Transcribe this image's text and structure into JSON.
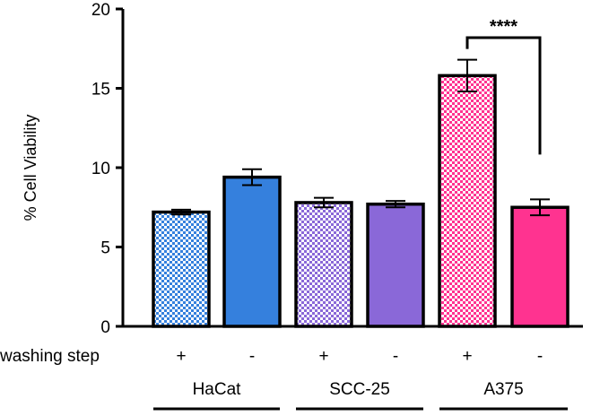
{
  "chart_data": {
    "type": "bar",
    "title": "",
    "ylabel": "% Cell Viability",
    "ylim": [
      0,
      20
    ],
    "yticks": [
      0,
      5,
      10,
      15,
      20
    ],
    "row_label": "washing step",
    "categories": [
      "+",
      "-",
      "+",
      "-",
      "+",
      "-"
    ],
    "groups": [
      {
        "name": "HaCat",
        "color": "#3580dd"
      },
      {
        "name": "SCC-25",
        "color": "#8a68d8"
      },
      {
        "name": "A375",
        "color": "#ff3390"
      }
    ],
    "values": [
      7.2,
      9.4,
      7.8,
      7.7,
      15.8,
      7.5
    ],
    "errors": [
      0.15,
      0.5,
      0.3,
      0.2,
      1.0,
      0.5
    ],
    "patterned": [
      true,
      false,
      true,
      false,
      true,
      false
    ],
    "annotation": {
      "text": "****",
      "between": [
        4,
        5
      ]
    }
  }
}
